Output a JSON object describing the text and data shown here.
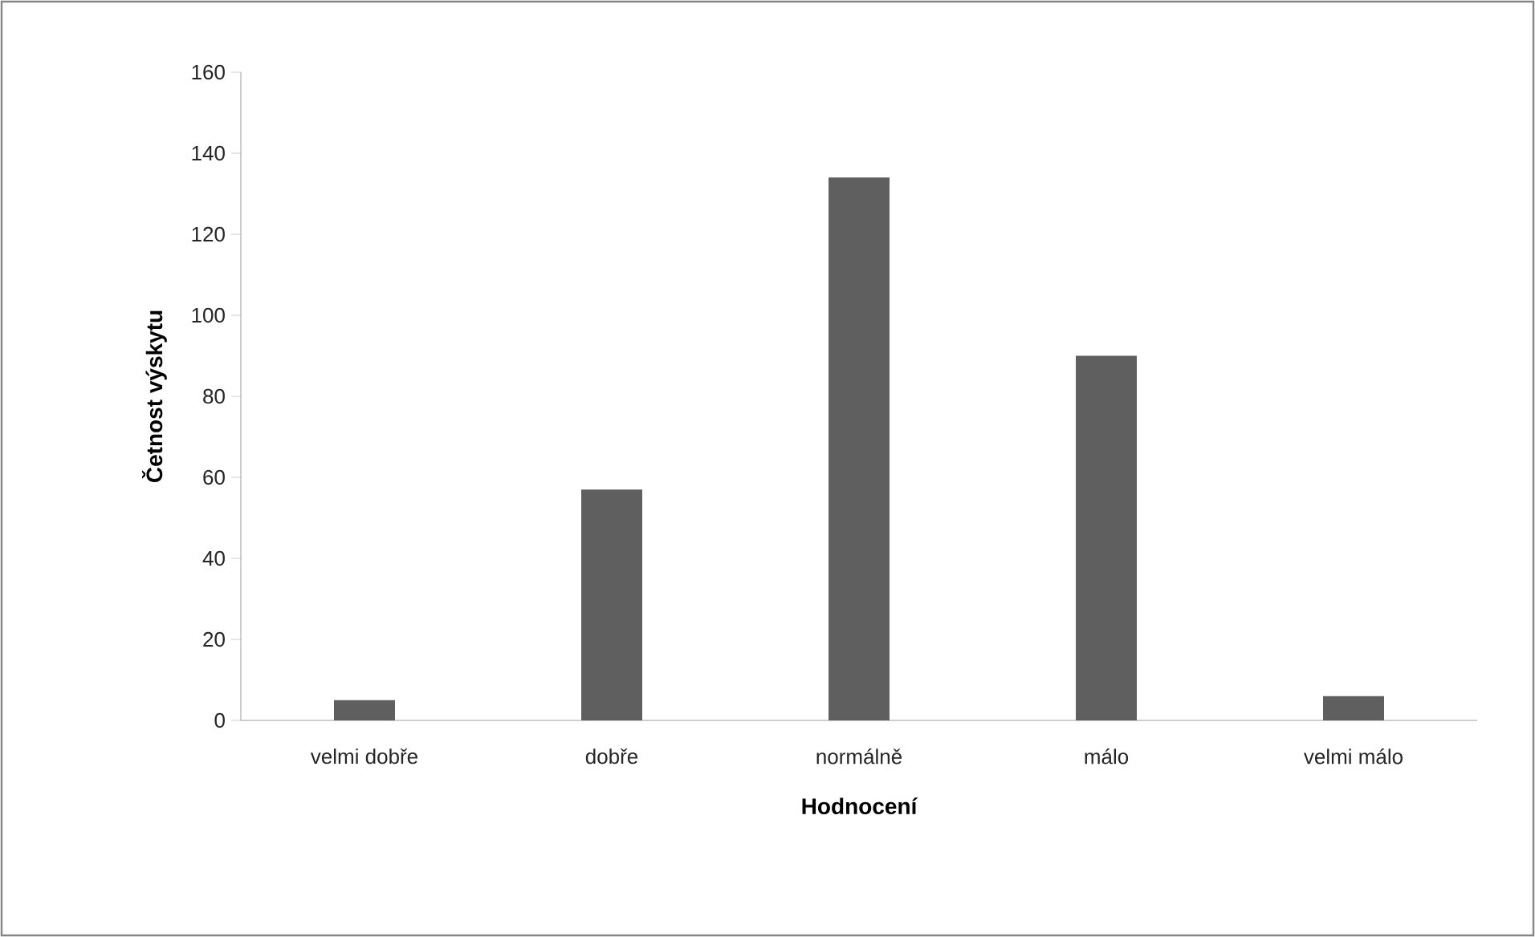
{
  "chart_data": {
    "type": "bar",
    "xlabel": "Hodnocení",
    "ylabel": "Četnost výskytu",
    "categories": [
      "velmi dobře",
      "dobře",
      "normálně",
      "málo",
      "velmi málo"
    ],
    "values": [
      5,
      57,
      134,
      90,
      6
    ],
    "color": "#5f5f5f",
    "ylim": [
      0,
      160
    ],
    "yticks": [
      0,
      20,
      40,
      60,
      80,
      100,
      120,
      140,
      160
    ],
    "grid": false
  }
}
